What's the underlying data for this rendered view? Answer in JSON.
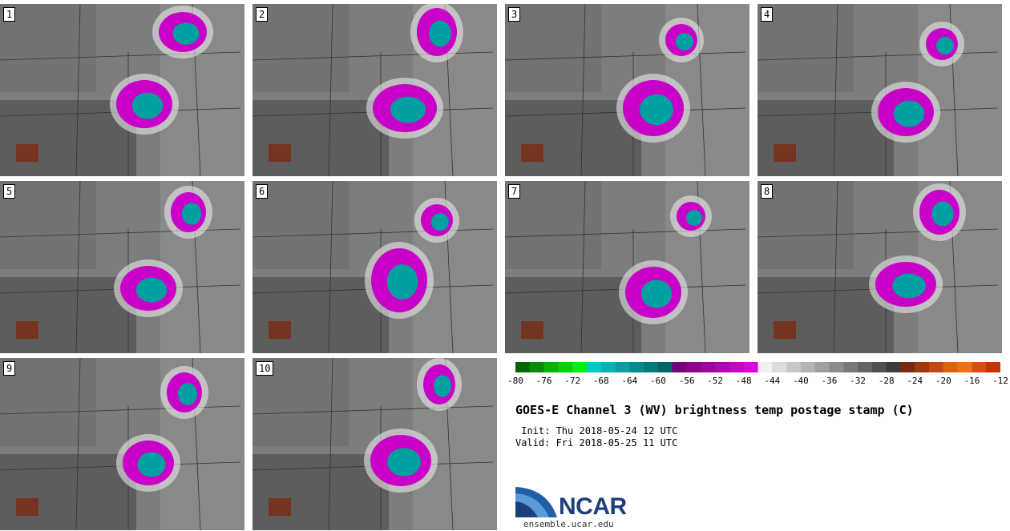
{
  "panels": [
    {
      "label": "1"
    },
    {
      "label": "2"
    },
    {
      "label": "3"
    },
    {
      "label": "4"
    },
    {
      "label": "5"
    },
    {
      "label": "6"
    },
    {
      "label": "7"
    },
    {
      "label": "8"
    },
    {
      "label": "9"
    },
    {
      "label": "10"
    }
  ],
  "colorbar": {
    "colors": [
      "#006400",
      "#008c00",
      "#00b400",
      "#00d200",
      "#00f000",
      "#00c8c8",
      "#00b4b4",
      "#00a0a0",
      "#008c8c",
      "#007878",
      "#006464",
      "#780078",
      "#8c008c",
      "#a000a0",
      "#b400b4",
      "#c800c8",
      "#dc00dc",
      "#f0f0f0",
      "#dcdcdc",
      "#c8c8c8",
      "#b4b4b4",
      "#a0a0a0",
      "#8c8c8c",
      "#787878",
      "#646464",
      "#505050",
      "#3c3c3c",
      "#7a2a10",
      "#a0360c",
      "#c04810",
      "#e06010",
      "#f07010",
      "#e04810",
      "#c83000"
    ],
    "tick_labels": [
      "-80",
      "-76",
      "-72",
      "-68",
      "-64",
      "-60",
      "-56",
      "-52",
      "-48",
      "-44",
      "-40",
      "-36",
      "-32",
      "-28",
      "-24",
      "-20",
      "-16",
      "-12"
    ]
  },
  "title": "GOES-E Channel 3 (WV) brightness temp postage stamp (C)",
  "init_line": " Init: Thu 2018-05-24 12 UTC",
  "valid_line": "Valid: Fri 2018-05-25 11 UTC",
  "logo_text": "NCAR",
  "site": "ensemble.ucar.edu"
}
